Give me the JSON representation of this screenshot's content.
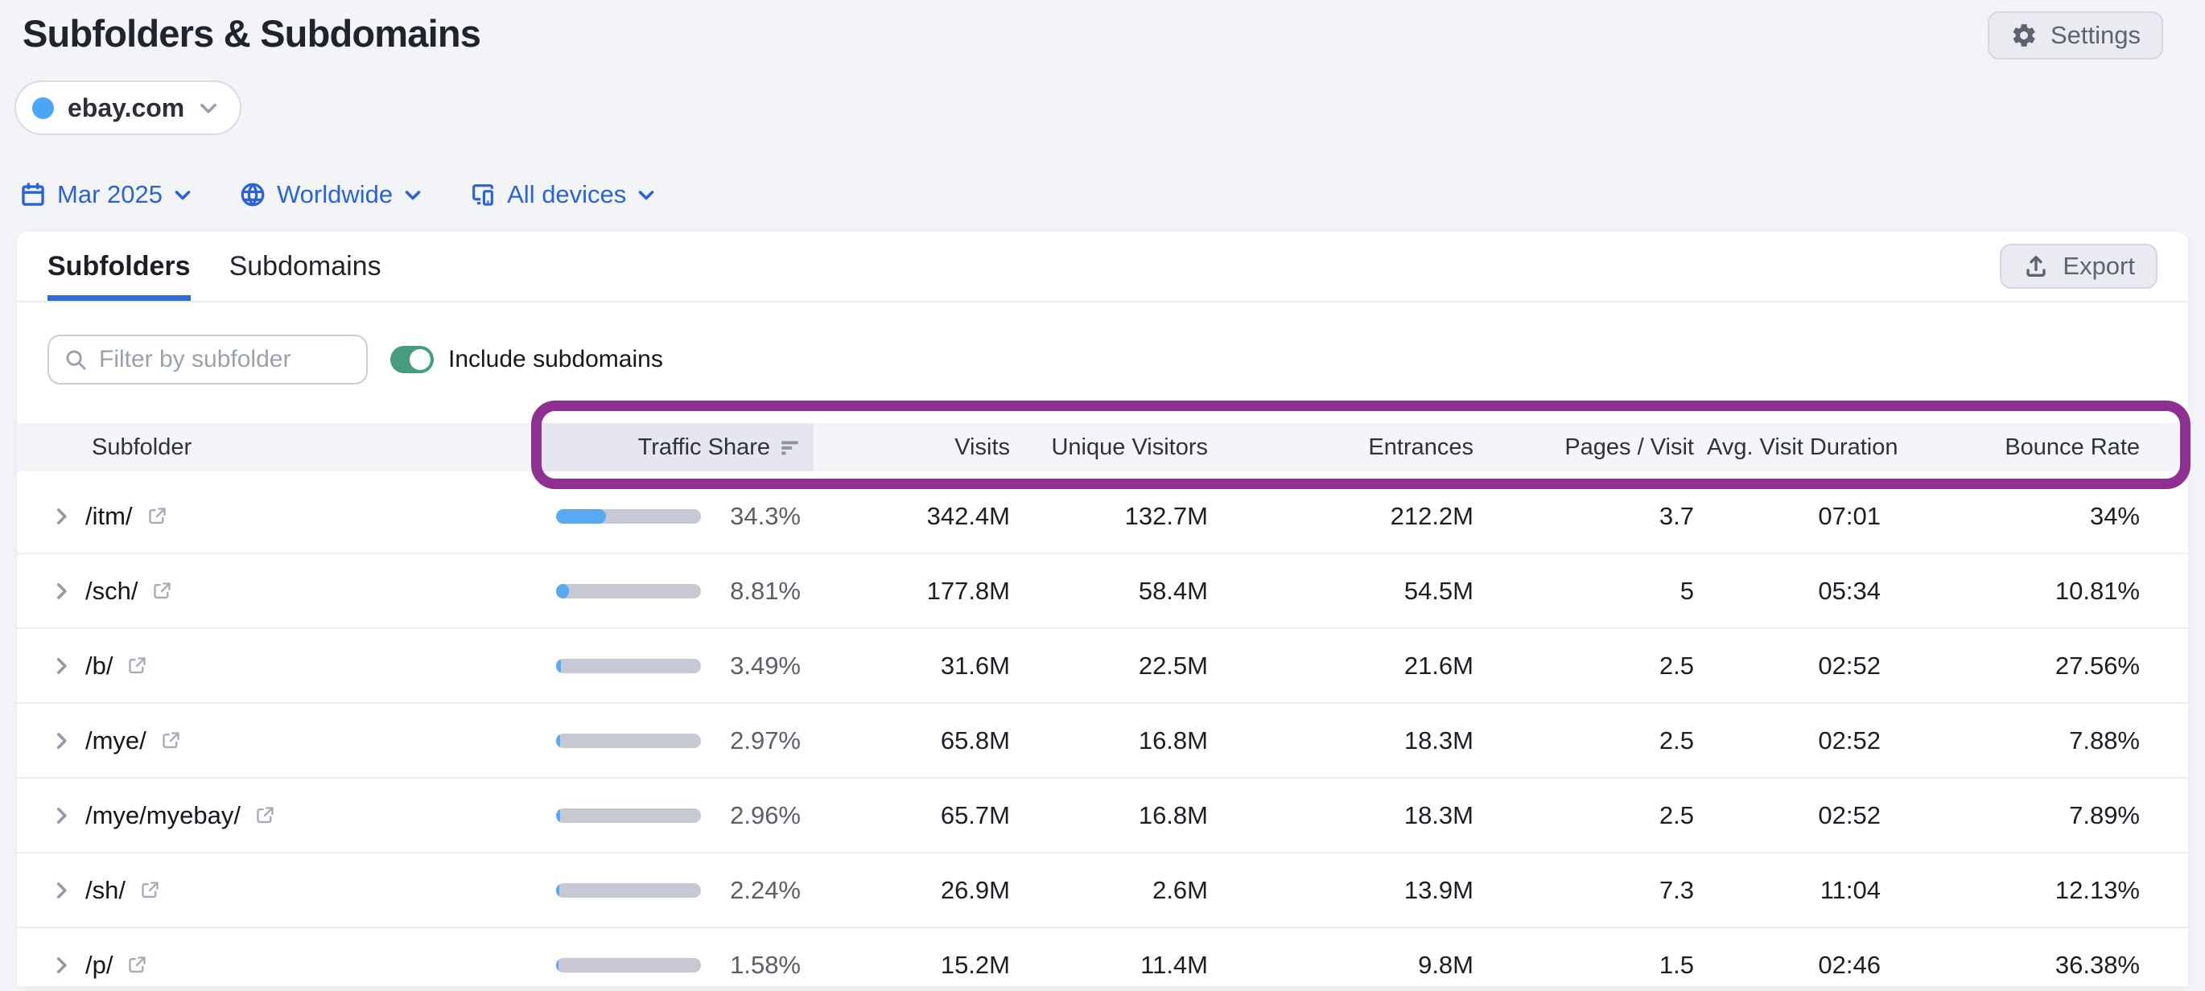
{
  "page": {
    "title": "Subfolders & Subdomains"
  },
  "topbar": {
    "settings_label": "Settings"
  },
  "domain_selector": {
    "domain": "ebay.com",
    "dot_color": "#4aa7f5"
  },
  "filters": {
    "date": "Mar 2025",
    "region": "Worldwide",
    "devices": "All devices"
  },
  "card": {
    "tabs": [
      {
        "label": "Subfolders",
        "active": true
      },
      {
        "label": "Subdomains",
        "active": false
      }
    ],
    "export_label": "Export",
    "filter_input": {
      "value": "",
      "placeholder": "Filter by subfolder"
    },
    "toggle": {
      "label": "Include subdomains",
      "state": "on"
    }
  },
  "table": {
    "columns": [
      "Subfolder",
      "Traffic Share",
      "Visits",
      "Unique Visitors",
      "Entrances",
      "Pages / Visit",
      "Avg. Visit Duration",
      "Bounce Rate"
    ],
    "sorted_column": "Traffic Share",
    "sort_direction": "desc",
    "rows": [
      {
        "subfolder": "/itm/",
        "traffic_share": "34.3%",
        "traffic_share_pct": 34.3,
        "visits": "342.4M",
        "unique_visitors": "132.7M",
        "entrances": "212.2M",
        "pages_per_visit": "3.7",
        "avg_visit_duration": "07:01",
        "bounce_rate": "34%"
      },
      {
        "subfolder": "/sch/",
        "traffic_share": "8.81%",
        "traffic_share_pct": 8.81,
        "visits": "177.8M",
        "unique_visitors": "58.4M",
        "entrances": "54.5M",
        "pages_per_visit": "5",
        "avg_visit_duration": "05:34",
        "bounce_rate": "10.81%"
      },
      {
        "subfolder": "/b/",
        "traffic_share": "3.49%",
        "traffic_share_pct": 3.49,
        "visits": "31.6M",
        "unique_visitors": "22.5M",
        "entrances": "21.6M",
        "pages_per_visit": "2.5",
        "avg_visit_duration": "02:52",
        "bounce_rate": "27.56%"
      },
      {
        "subfolder": "/mye/",
        "traffic_share": "2.97%",
        "traffic_share_pct": 2.97,
        "visits": "65.8M",
        "unique_visitors": "16.8M",
        "entrances": "18.3M",
        "pages_per_visit": "2.5",
        "avg_visit_duration": "02:52",
        "bounce_rate": "7.88%"
      },
      {
        "subfolder": "/mye/myebay/",
        "traffic_share": "2.96%",
        "traffic_share_pct": 2.96,
        "visits": "65.7M",
        "unique_visitors": "16.8M",
        "entrances": "18.3M",
        "pages_per_visit": "2.5",
        "avg_visit_duration": "02:52",
        "bounce_rate": "7.89%"
      },
      {
        "subfolder": "/sh/",
        "traffic_share": "2.24%",
        "traffic_share_pct": 2.24,
        "visits": "26.9M",
        "unique_visitors": "2.6M",
        "entrances": "13.9M",
        "pages_per_visit": "7.3",
        "avg_visit_duration": "11:04",
        "bounce_rate": "12.13%"
      },
      {
        "subfolder": "/p/",
        "traffic_share": "1.58%",
        "traffic_share_pct": 1.58,
        "visits": "15.2M",
        "unique_visitors": "11.4M",
        "entrances": "9.8M",
        "pages_per_visit": "1.5",
        "avg_visit_duration": "02:46",
        "bounce_rate": "36.38%"
      }
    ]
  },
  "colors": {
    "page_background": "#f3f4f8",
    "link_blue": "#2a63d8",
    "tab_underline_blue": "#2e6bdb",
    "bar_fill_blue": "#58a8f2",
    "bar_track_gray": "#c6c9d3",
    "toggle_on_green": "#459c80",
    "annotation_purple": "#8e2f92",
    "sorted_column_background": "#e5e6ef"
  }
}
